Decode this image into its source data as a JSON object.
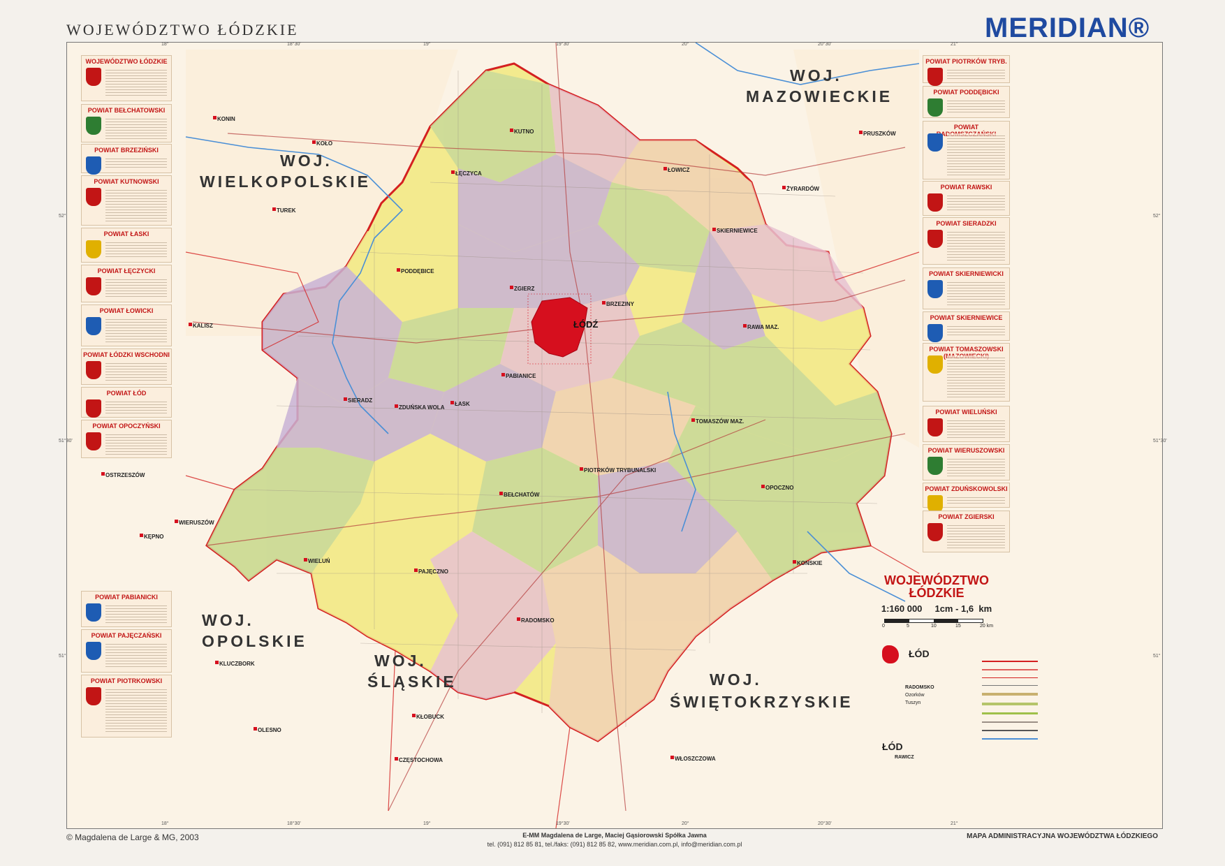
{
  "header": {
    "title": "WOJEWÓDZTWO ŁÓDZKIE",
    "brand": "MERIDIAN®"
  },
  "map": {
    "top_coords": [
      "18°",
      "18°30'",
      "19°",
      "19°30'",
      "20°",
      "20°30'",
      "21°"
    ],
    "side_coords": [
      "52°",
      "51°30'",
      "51°"
    ],
    "neighbor_regions": [
      {
        "line1": "WOJ.",
        "line2": "WIELKOPOLSKIE"
      },
      {
        "line1": "WOJ.",
        "line2": "MAZOWIECKIE"
      },
      {
        "line1": "WOJ.",
        "line2": "OPOLSKIE"
      },
      {
        "line1": "WOJ.",
        "line2": "ŚLĄSKIE"
      },
      {
        "line1": "WOJ.",
        "line2": "ŚWIĘTOKRZYSKIE"
      }
    ],
    "capital": "ŁÓDŹ",
    "cities": [
      "KUTNO",
      "ŁĘCZYCA",
      "ŁOWICZ",
      "SKIERNIEWICE",
      "ZGIERZ",
      "BRZEZINY",
      "RAWA MAZ.",
      "PABIANICE",
      "SIERADZ",
      "ZDUŃSKA WOLA",
      "ŁASK",
      "TOMASZÓW MAZ.",
      "PIOTRKÓW TRYBUNALSKI",
      "BEŁCHATÓW",
      "WIELUŃ",
      "WIERUSZÓW",
      "OPOCZNO",
      "RADOMSKO",
      "PAJĘCZNO",
      "PODDĘBICE",
      "KONIN",
      "KALISZ",
      "CZĘSTOCHOWA",
      "KLUCZBORK",
      "KĘPNO",
      "OSTRZESZÓW",
      "KONSKIE",
      "WŁOSZCZOWA",
      "OLESNO",
      "KŁOBUCK",
      "ŻYRARDÓW",
      "PRUSZKÓW",
      "TUREK",
      "KOŁO"
    ]
  },
  "left_panels": [
    {
      "title": "WOJEWÓDZTWO ŁÓDZKIE",
      "crest_color": "#c21515"
    },
    {
      "title": "POWIAT BEŁCHATOWSKI",
      "crest_color": "#2e7d32"
    },
    {
      "title": "POWIAT BRZEZIŃSKI",
      "crest_color": "#1e5cb3"
    },
    {
      "title": "POWIAT KUTNOWSKI",
      "crest_color": "#c21515"
    },
    {
      "title": "POWIAT ŁASKI",
      "crest_color": "#e0b000"
    },
    {
      "title": "POWIAT ŁĘCZYCKI",
      "crest_color": "#c21515"
    },
    {
      "title": "POWIAT ŁOWICKI",
      "crest_color": "#1e5cb3"
    },
    {
      "title": "POWIAT ŁÓDZKI WSCHODNI",
      "crest_color": "#c21515"
    },
    {
      "title": "POWIAT ŁÓD",
      "crest_color": "#c21515"
    },
    {
      "title": "POWIAT OPOCZYŃSKI",
      "crest_color": "#c21515"
    },
    {
      "title": "POWIAT PABIANICKI",
      "crest_color": "#1e5cb3"
    },
    {
      "title": "POWIAT PAJĘCZAŃSKI",
      "crest_color": "#1e5cb3"
    },
    {
      "title": "POWIAT PIOTRKOWSKI",
      "crest_color": "#c21515"
    }
  ],
  "right_panels": [
    {
      "title": "POWIAT PIOTRKÓW TRYB.",
      "crest_color": "#c21515"
    },
    {
      "title": "POWIAT PODDĘBICKI",
      "crest_color": "#2e7d32"
    },
    {
      "title": "POWIAT RADOMSZCZAŃSKI",
      "crest_color": "#1e5cb3"
    },
    {
      "title": "POWIAT RAWSKI",
      "crest_color": "#c21515"
    },
    {
      "title": "POWIAT SIERADZKI",
      "crest_color": "#c21515"
    },
    {
      "title": "POWIAT SKIERNIEWICKI",
      "crest_color": "#1e5cb3"
    },
    {
      "title": "POWIAT SKIERNIEWICE",
      "crest_color": "#1e5cb3"
    },
    {
      "title": "POWIAT TOMASZOWSKI (MAZOWIECKI)",
      "crest_color": "#e0b000"
    },
    {
      "title": "POWIAT WIELUŃSKI",
      "crest_color": "#c21515"
    },
    {
      "title": "POWIAT WIERUSZOWSKI",
      "crest_color": "#2e7d32"
    },
    {
      "title": "POWIAT ZDUŃSKOWOLSKI",
      "crest_color": "#e0b000"
    },
    {
      "title": "POWIAT ZGIERSKI",
      "crest_color": "#c21515"
    }
  ],
  "legend": {
    "title_line1": "WOJEWÓDZTWO",
    "title_line2": "ŁÓDZKIE",
    "scale": "1:160 000     1cm - 1,6  km",
    "scale_ticks": [
      "0",
      "5",
      "10",
      "15",
      "20 km"
    ],
    "sample_city_big": "ŁÓD",
    "sample_city_mid": "RADOMSKO",
    "sample_city_small1": "Ozorków",
    "sample_city_small2": "Tuszyn",
    "sample_capital": "ŁÓD",
    "sample_powiat_seat": "RAWICZ"
  },
  "footer": {
    "left": "© Magdalena de Large & MG, 2003",
    "center_line1": "E-MM  Magdalena de Large, Maciej Gąsiorowski Spółka Jawna",
    "center_line2": "tel. (091) 812 85 81, tel./faks: (091) 812 85 82, www.meridian.com.pl, info@meridian.com.pl",
    "right": "MAPA ADMINISTRACYJNA WOJEWÓDZTWA ŁÓDZKIEGO"
  },
  "colors": {
    "border_red": "#d42020",
    "yellow": "#f3ea8e",
    "green": "#c8d99a",
    "purple": "#c9b3d6",
    "pink": "#e8c3d2",
    "peach": "#f1d2b6",
    "capital_red": "#d60f1e",
    "river": "#4a8fd6"
  }
}
